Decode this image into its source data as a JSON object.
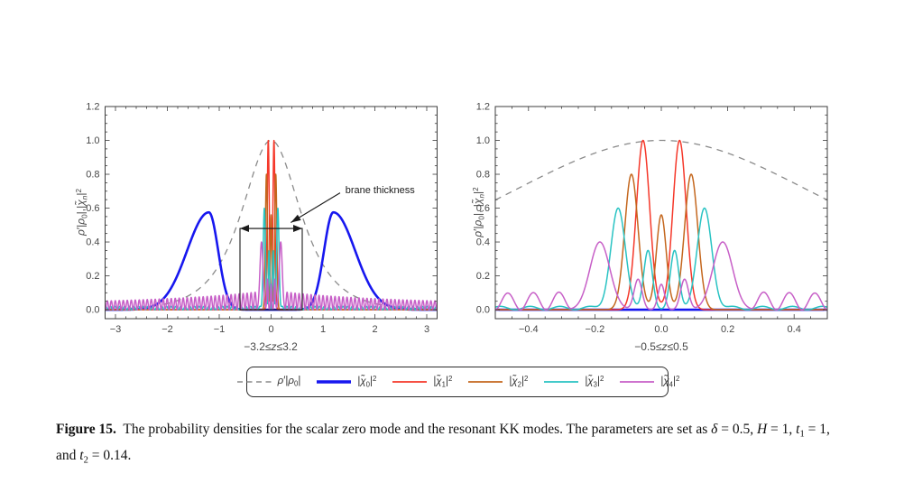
{
  "figure": {
    "caption_html": "<b>Figure 15.</b>&nbsp; The probability densities for the scalar zero mode and the resonant KK modes. The parameters are set as <i>δ</i> = 0.5, <i>H</i> = 1, <i>t</i><sub>1</sub> = 1, and <i>t</i><sub>2</sub> = 0.14."
  },
  "chart_data": {
    "type": "line",
    "ylim": [
      -0.053,
      1.2
    ],
    "yticks": [
      {
        "v": 0.0,
        "label": "0.0"
      },
      {
        "v": 0.2,
        "label": "0.2"
      },
      {
        "v": 0.4,
        "label": "0.4"
      },
      {
        "v": 0.6,
        "label": "0.6"
      },
      {
        "v": 0.8,
        "label": "0.8"
      },
      {
        "v": 1.0,
        "label": "1.0"
      },
      {
        "v": 1.2,
        "label": "1.2"
      }
    ],
    "y_minor_step": 0.05,
    "series": [
      {
        "id": "rho",
        "label_html": "<i>ρ</i>′|<i>ρ</i><sub>0</sub>|",
        "color": "#8a8a8a",
        "width": 1.3,
        "dash": [
          7,
          6
        ],
        "description": "scalar zero mode density, broad peak height 1.0 at z=0, ~0.62 at |z|=0.5",
        "components": [
          {
            "type": "sech",
            "a": 0.5,
            "h": 1.0
          }
        ]
      },
      {
        "id": "chi0",
        "label_html": "|<i>χ̃</i><sub>0</sub>|<sup>2</sup>",
        "color": "#1717ef",
        "width": 2.6,
        "dash": null,
        "description": "two asymmetric peaks at z=±1.2, height 0.575; zero near origin",
        "components": [
          {
            "type": "agauss",
            "x0": -1.2,
            "h": 0.575,
            "s_outer": 0.42,
            "s_inner": 0.18
          },
          {
            "type": "agauss",
            "x0": 1.2,
            "h": 0.575,
            "s_outer": 0.42,
            "s_inner": 0.18
          }
        ]
      },
      {
        "id": "chi1",
        "label_html": "|<i>χ̃</i><sub>1</sub>|<sup>2</sup>",
        "color": "#f5382a",
        "width": 1.5,
        "dash": null,
        "description": "sharp double peak at z=±0.055, height 1.0",
        "components": [
          {
            "type": "gauss",
            "x0": -0.055,
            "h": 1.0,
            "s": 0.02
          },
          {
            "type": "gauss",
            "x0": 0.055,
            "h": 1.0,
            "s": 0.02
          }
        ]
      },
      {
        "id": "chi2",
        "label_html": "|<i>χ̃</i><sub>2</sub>|<sup>2</sup>",
        "color": "#c4671e",
        "width": 1.5,
        "dash": null,
        "description": "peaks at z=±0.09 height 0.8 and central peak height 0.56",
        "components": [
          {
            "type": "gauss",
            "x0": -0.09,
            "h": 0.8,
            "s": 0.02
          },
          {
            "type": "gauss",
            "x0": 0.09,
            "h": 0.8,
            "s": 0.02
          },
          {
            "type": "gauss",
            "x0": 0.0,
            "h": 0.56,
            "s": 0.015
          }
        ]
      },
      {
        "id": "chi3",
        "label_html": "|<i>χ̃</i><sub>3</sub>|<sup>2</sup>",
        "color": "#29c3c3",
        "width": 1.5,
        "dash": null,
        "description": "peaks at z=±0.13 height 0.6 and z=±0.04 height 0.35, small oscillating tails",
        "components": [
          {
            "type": "gauss",
            "x0": -0.13,
            "h": 0.6,
            "s": 0.022
          },
          {
            "type": "gauss",
            "x0": 0.13,
            "h": 0.6,
            "s": 0.022
          },
          {
            "type": "gauss",
            "x0": -0.04,
            "h": 0.35,
            "s": 0.013
          },
          {
            "type": "gauss",
            "x0": 0.04,
            "h": 0.35,
            "s": 0.013
          },
          {
            "type": "osc",
            "x0": 0.17,
            "p": 0.09,
            "a": 0.02,
            "decay": 0
          }
        ]
      },
      {
        "id": "chi4",
        "label_html": "|<i>χ̃</i><sub>4</sub>|<sup>2</sup>",
        "color": "#c75fc7",
        "width": 1.5,
        "dash": null,
        "description": "peaks at z=±0.185 height 0.4, ±0.07 height 0.18, 0 height 0.15; oscillating tails amplitude ~0.06-0.1 over whole range",
        "components": [
          {
            "type": "gauss",
            "x0": -0.185,
            "h": 0.4,
            "s": 0.03
          },
          {
            "type": "gauss",
            "x0": 0.185,
            "h": 0.4,
            "s": 0.03
          },
          {
            "type": "gauss",
            "x0": -0.07,
            "h": 0.18,
            "s": 0.012
          },
          {
            "type": "gauss",
            "x0": 0.07,
            "h": 0.18,
            "s": 0.012
          },
          {
            "type": "gauss",
            "x0": 0.0,
            "h": 0.15,
            "s": 0.01
          },
          {
            "type": "osc",
            "x0": 0.27,
            "p": 0.077,
            "a": 0.105,
            "decay": 0.35
          }
        ]
      }
    ],
    "plots": [
      {
        "id": "left",
        "xlim": [
          -3.2,
          3.2
        ],
        "x_minor_step": 0.2,
        "xticks": [
          {
            "v": -3,
            "label": "−3"
          },
          {
            "v": -2,
            "label": "−2"
          },
          {
            "v": -1,
            "label": "−1"
          },
          {
            "v": 0,
            "label": "0"
          },
          {
            "v": 1,
            "label": "1"
          },
          {
            "v": 2,
            "label": "2"
          },
          {
            "v": 3,
            "label": "3"
          }
        ],
        "xlabel_html": "−3.2≤<i>z</i>≤3.2",
        "ylabel_html": "<i>ρ</i>′|<i>ρ</i><sub>0</sub>|,|<i>χ̃</i><sub><i>n</i></sub>|<sup>2</sup>",
        "annotations": {
          "box": {
            "x1": -0.6,
            "x2": 0.6,
            "y1": 0.0,
            "y2": 0.48
          },
          "width_arrow": {
            "y": 0.48,
            "x1": -0.6,
            "x2": 0.6
          },
          "pointer_arrow": {
            "x1": 1.33,
            "y1": 0.69,
            "x2": 0.38,
            "y2": 0.515
          },
          "label": {
            "x": 1.43,
            "y": 0.71,
            "text": "brane thickness"
          }
        }
      },
      {
        "id": "right",
        "xlim": [
          -0.5,
          0.5
        ],
        "x_minor_step": 0.05,
        "xticks": [
          {
            "v": -0.4,
            "label": "−0.4"
          },
          {
            "v": -0.2,
            "label": "−0.2"
          },
          {
            "v": 0.0,
            "label": "0.0"
          },
          {
            "v": 0.2,
            "label": "0.2"
          },
          {
            "v": 0.4,
            "label": "0.4"
          }
        ],
        "xlabel_html": "−0.5≤<i>z</i>≤0.5",
        "ylabel_html": "<i>ρ</i>′|<i>ρ</i><sub>0</sub>|, |<i>χ̃</i><sub><i>n</i></sub>|<sup>2</sup>",
        "annotations": null
      }
    ],
    "style_colors": {
      "frame": "#3c3c3c",
      "tick_label": "#474747",
      "annotation": "#1a1a1a"
    }
  }
}
